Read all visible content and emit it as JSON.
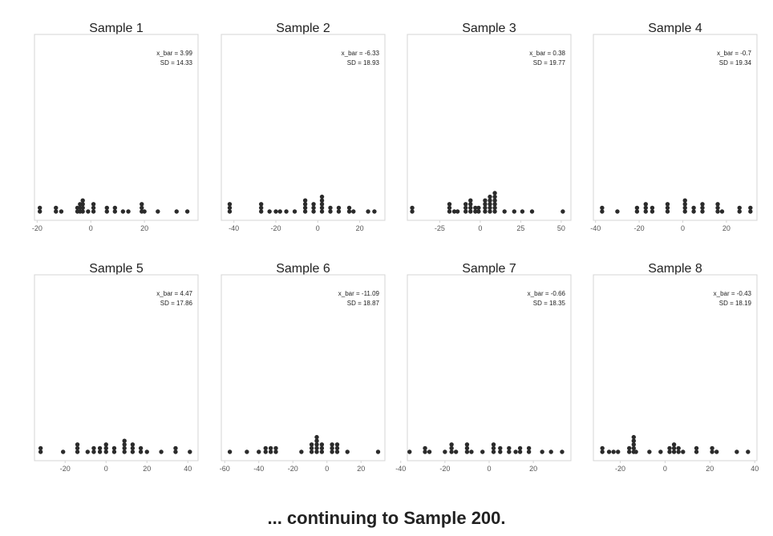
{
  "footer": "... continuing to Sample 200.",
  "colors": {
    "dot": "#2b2b2b",
    "frame": "#d4d4d4",
    "text": "#222222",
    "tick": "#555555"
  },
  "chart_data": [
    {
      "type": "scatter",
      "title": "Sample 1",
      "stats": {
        "xbar": "x_bar = 3.99",
        "sd": "SD = 14.33"
      },
      "xlim": [
        -21,
        40
      ],
      "ticks": [
        -20,
        0,
        20
      ],
      "points": [
        -19,
        -19,
        -13,
        -13,
        -11,
        -5,
        -5,
        -4,
        -4,
        -4,
        -3,
        -3,
        -3,
        -3,
        -1,
        1,
        1,
        1,
        6,
        6,
        9,
        9,
        12,
        14,
        19,
        19,
        19,
        20,
        25,
        32,
        36
      ]
    },
    {
      "type": "scatter",
      "title": "Sample 2",
      "stats": {
        "xbar": "x_bar = -6.33",
        "sd": "SD = 18.93"
      },
      "xlim": [
        -46,
        32
      ],
      "ticks": [
        -40,
        -20,
        0,
        20
      ],
      "points": [
        -42,
        -42,
        -42,
        -27,
        -27,
        -27,
        -23,
        -20,
        -18,
        -15,
        -11,
        -6,
        -6,
        -6,
        -6,
        -2,
        -2,
        -2,
        2,
        2,
        2,
        2,
        2,
        6,
        6,
        10,
        10,
        15,
        15,
        17,
        24,
        27
      ]
    },
    {
      "type": "scatter",
      "title": "Sample 3",
      "stats": {
        "xbar": "x_bar = 0.38",
        "sd": "SD = 19.77"
      },
      "xlim": [
        -45,
        56
      ],
      "ticks": [
        -25,
        0,
        25,
        50
      ],
      "points": [
        -42,
        -42,
        -19,
        -19,
        -19,
        -16,
        -14,
        -9,
        -9,
        -9,
        -6,
        -6,
        -6,
        -6,
        -3,
        -3,
        -1,
        -1,
        3,
        3,
        3,
        3,
        6,
        6,
        6,
        6,
        6,
        9,
        9,
        9,
        9,
        9,
        9,
        15,
        21,
        26,
        32,
        51
      ]
    },
    {
      "type": "scatter",
      "title": "Sample 4",
      "stats": {
        "xbar": "x_bar = -0.7",
        "sd": "SD = 19.34"
      },
      "xlim": [
        -41,
        34
      ],
      "ticks": [
        -40,
        -20,
        0,
        20
      ],
      "points": [
        -37,
        -37,
        -30,
        -21,
        -21,
        -17,
        -17,
        -17,
        -14,
        -14,
        -7,
        -7,
        -7,
        1,
        1,
        1,
        1,
        5,
        5,
        9,
        9,
        9,
        16,
        16,
        16,
        18,
        26,
        26,
        31,
        31
      ]
    },
    {
      "type": "scatter",
      "title": "Sample 5",
      "stats": {
        "xbar": "x_bar = 4.47",
        "sd": "SD = 17.86"
      },
      "xlim": [
        -35,
        45
      ],
      "ticks": [
        -20,
        0,
        20,
        40
      ],
      "points": [
        -32,
        -32,
        -21,
        -14,
        -14,
        -14,
        -9,
        -6,
        -6,
        -3,
        -3,
        0,
        0,
        0,
        4,
        4,
        9,
        9,
        9,
        9,
        13,
        13,
        13,
        17,
        17,
        20,
        27,
        34,
        34,
        41
      ]
    },
    {
      "type": "scatter",
      "title": "Sample 6",
      "stats": {
        "xbar": "x_bar = -11.09",
        "sd": "SD = 18.87"
      },
      "xlim": [
        -62,
        34
      ],
      "ticks": [
        -60,
        -40,
        -20,
        0,
        20
      ],
      "points": [
        -57,
        -47,
        -40,
        -36,
        -36,
        -33,
        -33,
        -30,
        -30,
        -15,
        -9,
        -9,
        -9,
        -6,
        -6,
        -6,
        -6,
        -6,
        -3,
        -3,
        -3,
        3,
        3,
        3,
        6,
        6,
        6,
        12,
        30
      ]
    },
    {
      "type": "scatter",
      "title": "Sample 7",
      "stats": {
        "xbar": "x_bar = -0.66",
        "sd": "SD = 18.35"
      },
      "xlim": [
        -37,
        37
      ],
      "ticks": [
        -40,
        -20,
        0,
        20
      ],
      "points": [
        -36,
        -29,
        -29,
        -27,
        -20,
        -17,
        -17,
        -17,
        -15,
        -10,
        -10,
        -10,
        -8,
        -3,
        2,
        2,
        2,
        5,
        5,
        9,
        9,
        12,
        14,
        14,
        18,
        18,
        24,
        28,
        33
      ]
    },
    {
      "type": "scatter",
      "title": "Sample 8",
      "stats": {
        "xbar": "x_bar = -0.43",
        "sd": "SD = 18.19"
      },
      "xlim": [
        -32,
        41
      ],
      "ticks": [
        -20,
        0,
        20,
        40
      ],
      "points": [
        -28,
        -28,
        -25,
        -23,
        -21,
        -16,
        -16,
        -14,
        -14,
        -14,
        -14,
        -14,
        -13,
        -7,
        -2,
        2,
        2,
        4,
        4,
        4,
        6,
        6,
        8,
        14,
        14,
        21,
        21,
        23,
        32,
        37
      ]
    }
  ]
}
